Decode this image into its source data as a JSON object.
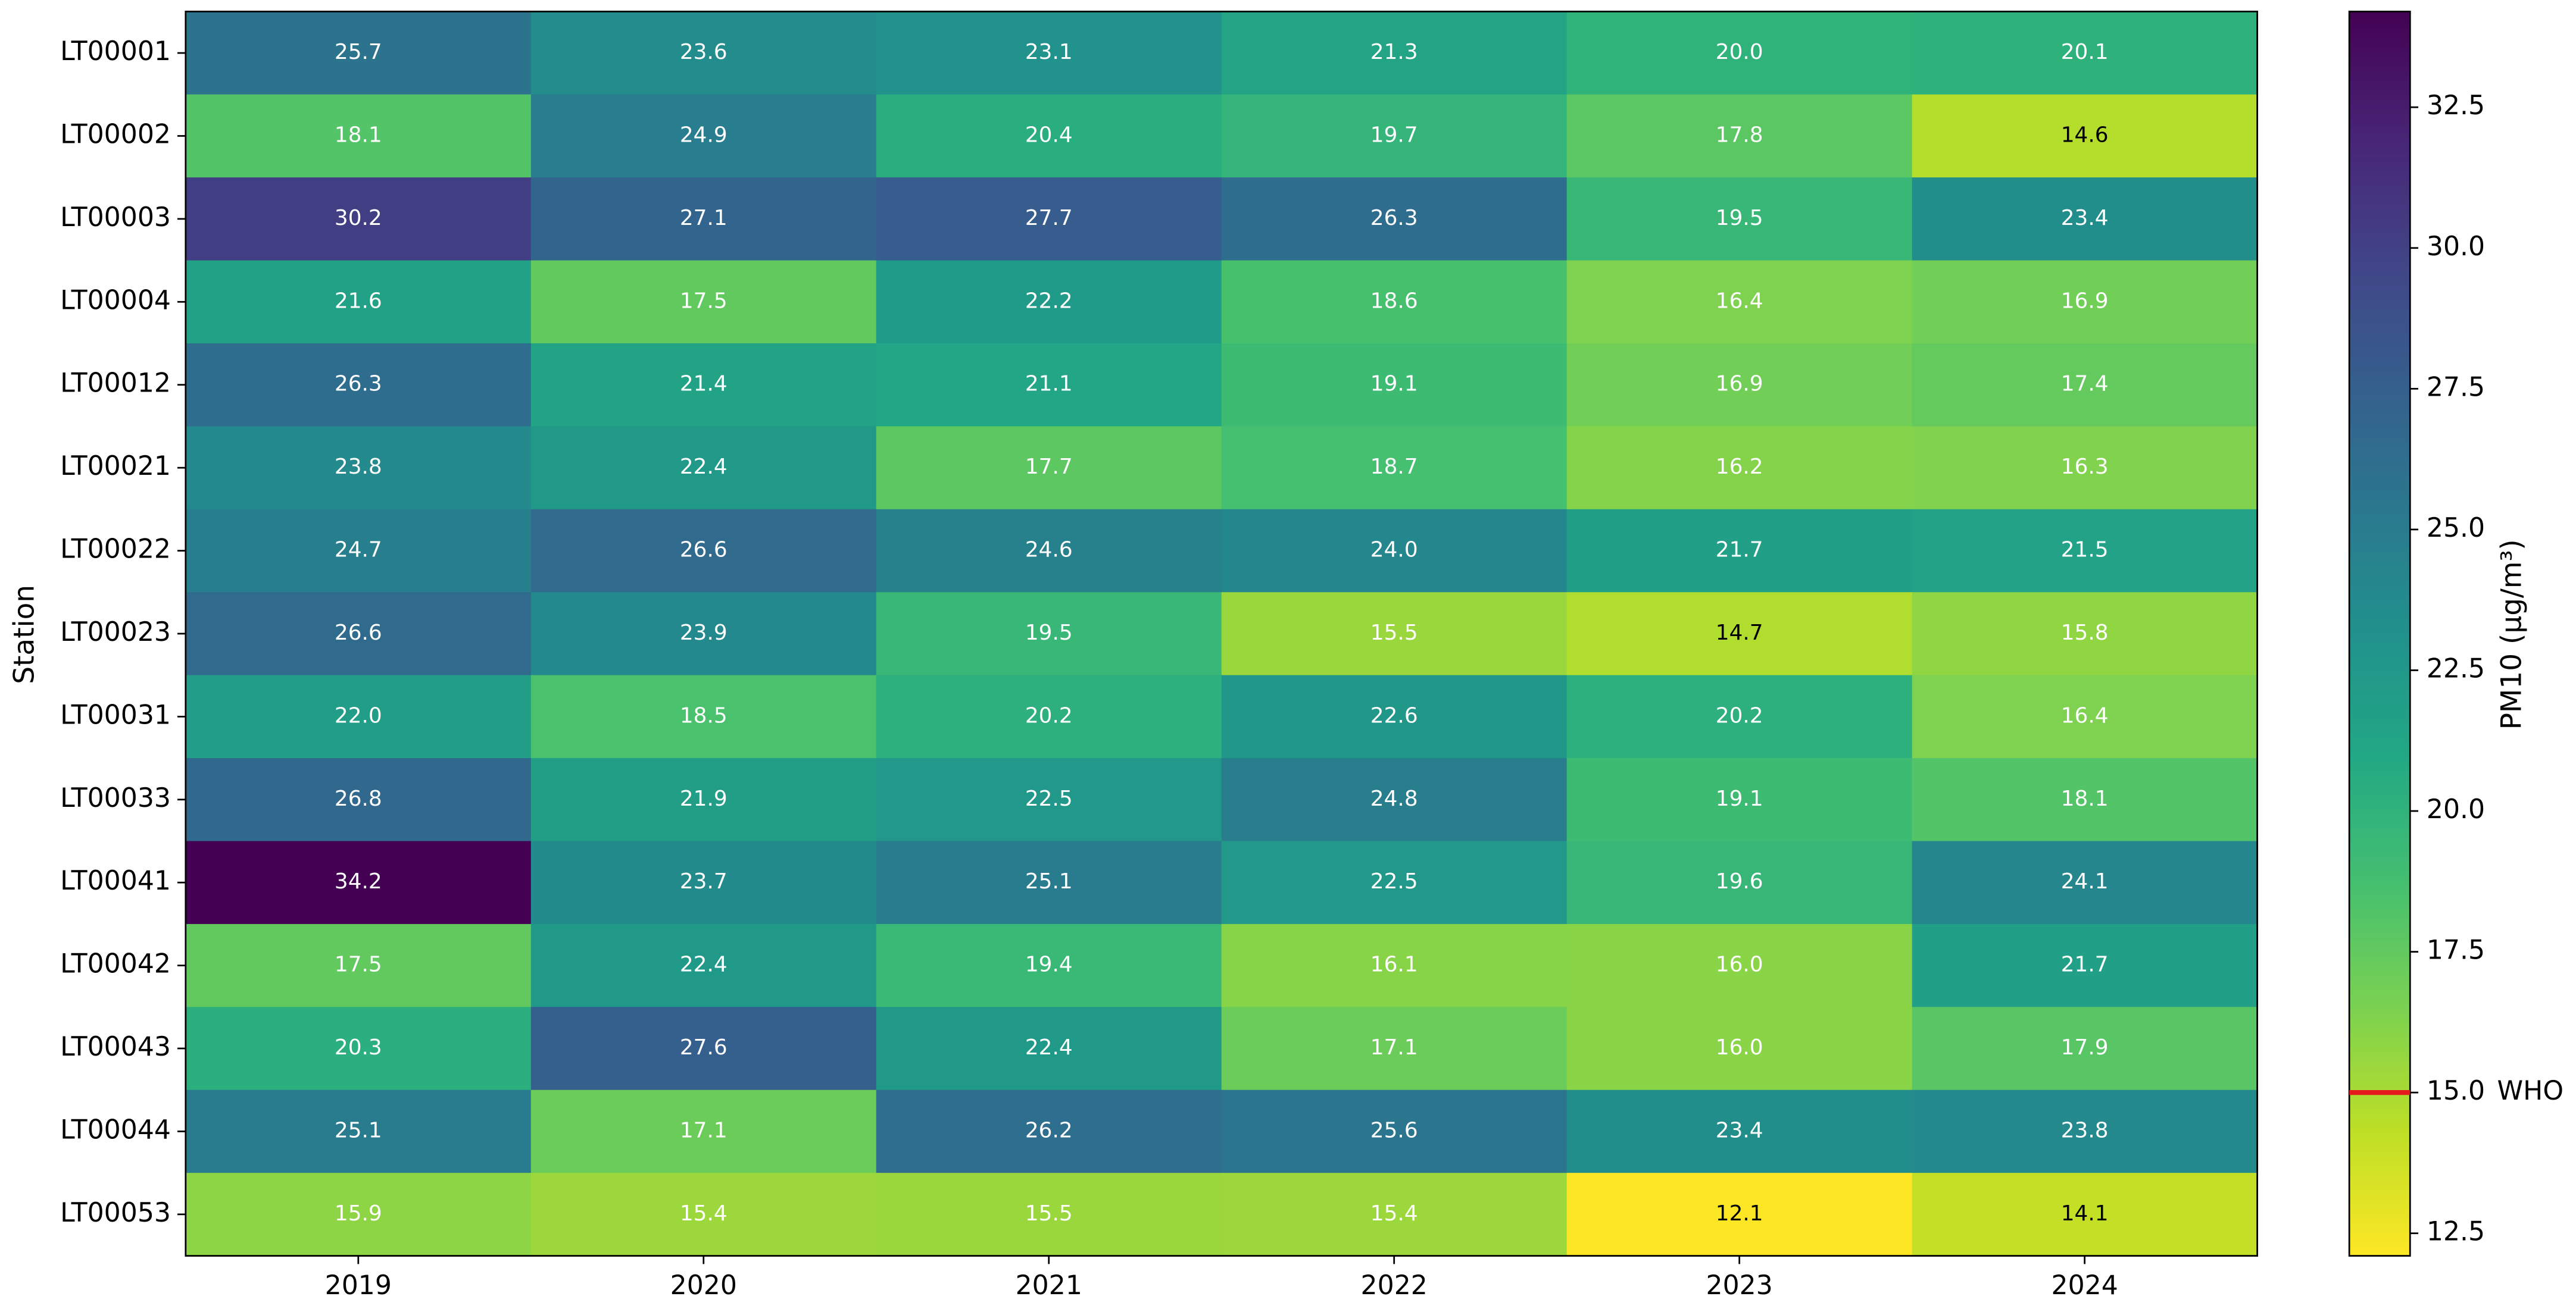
{
  "chart_data": {
    "type": "heatmap",
    "x_categories": [
      "2019",
      "2020",
      "2021",
      "2022",
      "2023",
      "2024"
    ],
    "y_categories": [
      "LT00001",
      "LT00002",
      "LT00003",
      "LT00004",
      "LT00012",
      "LT00021",
      "LT00022",
      "LT00023",
      "LT00031",
      "LT00033",
      "LT00041",
      "LT00042",
      "LT00043",
      "LT00044",
      "LT00053"
    ],
    "ylabel": "Station",
    "values": [
      [
        25.7,
        23.6,
        23.1,
        21.3,
        20.0,
        20.1
      ],
      [
        18.1,
        24.9,
        20.4,
        19.7,
        17.8,
        14.6
      ],
      [
        30.2,
        27.1,
        27.7,
        26.3,
        19.5,
        23.4
      ],
      [
        21.6,
        17.5,
        22.2,
        18.6,
        16.4,
        16.9
      ],
      [
        26.3,
        21.4,
        21.1,
        19.1,
        16.9,
        17.4
      ],
      [
        23.8,
        22.4,
        17.7,
        18.7,
        16.2,
        16.3
      ],
      [
        24.7,
        26.6,
        24.6,
        24.0,
        21.7,
        21.5
      ],
      [
        26.6,
        23.9,
        19.5,
        15.5,
        14.7,
        15.8
      ],
      [
        22.0,
        18.5,
        20.2,
        22.6,
        20.2,
        16.4
      ],
      [
        26.8,
        21.9,
        22.5,
        24.8,
        19.1,
        18.1
      ],
      [
        34.2,
        23.7,
        25.1,
        22.5,
        19.6,
        24.1
      ],
      [
        17.5,
        22.4,
        19.4,
        16.1,
        16.0,
        21.7
      ],
      [
        20.3,
        27.6,
        22.4,
        17.1,
        16.0,
        17.9
      ],
      [
        25.1,
        17.1,
        26.2,
        25.6,
        23.4,
        23.8
      ],
      [
        15.9,
        15.4,
        15.5,
        15.4,
        12.1,
        14.1
      ]
    ],
    "value_labels": [
      [
        "25.7",
        "23.6",
        "23.1",
        "21.3",
        "20.0",
        "20.1"
      ],
      [
        "18.1",
        "24.9",
        "20.4",
        "19.7",
        "17.8",
        "14.6"
      ],
      [
        "30.2",
        "27.1",
        "27.7",
        "26.3",
        "19.5",
        "23.4"
      ],
      [
        "21.6",
        "17.5",
        "22.2",
        "18.6",
        "16.4",
        "16.9"
      ],
      [
        "26.3",
        "21.4",
        "21.1",
        "19.1",
        "16.9",
        "17.4"
      ],
      [
        "23.8",
        "22.4",
        "17.7",
        "18.7",
        "16.2",
        "16.3"
      ],
      [
        "24.7",
        "26.6",
        "24.6",
        "24.0",
        "21.7",
        "21.5"
      ],
      [
        "26.6",
        "23.9",
        "19.5",
        "15.5",
        "14.7",
        "15.8"
      ],
      [
        "22.0",
        "18.5",
        "20.2",
        "22.6",
        "20.2",
        "16.4"
      ],
      [
        "26.8",
        "21.9",
        "22.5",
        "24.8",
        "19.1",
        "18.1"
      ],
      [
        "34.2",
        "23.7",
        "25.1",
        "22.5",
        "19.6",
        "24.1"
      ],
      [
        "17.5",
        "22.4",
        "19.4",
        "16.1",
        "16.0",
        "21.7"
      ],
      [
        "20.3",
        "27.6",
        "22.4",
        "17.1",
        "16.0",
        "17.9"
      ],
      [
        "25.1",
        "17.1",
        "26.2",
        "25.6",
        "23.4",
        "23.8"
      ],
      [
        "15.9",
        "15.4",
        "15.5",
        "15.4",
        "12.1",
        "14.1"
      ]
    ],
    "colormap": "viridis_r",
    "colorbar": {
      "label": "PM10 (μg/m³)",
      "lim": [
        12.1,
        34.2
      ],
      "ticks": [
        12.5,
        {
          "value": 15,
          "label": "15.0"
        },
        17.5,
        {
          "value": 20,
          "label": "20.0"
        },
        22.5,
        {
          "value": 25,
          "label": "25.0"
        },
        27.5,
        {
          "value": 30,
          "label": "30.0"
        },
        32.5
      ]
    },
    "reference_line": {
      "value": 15,
      "label": "WHO",
      "color": "#e41a1c"
    }
  }
}
